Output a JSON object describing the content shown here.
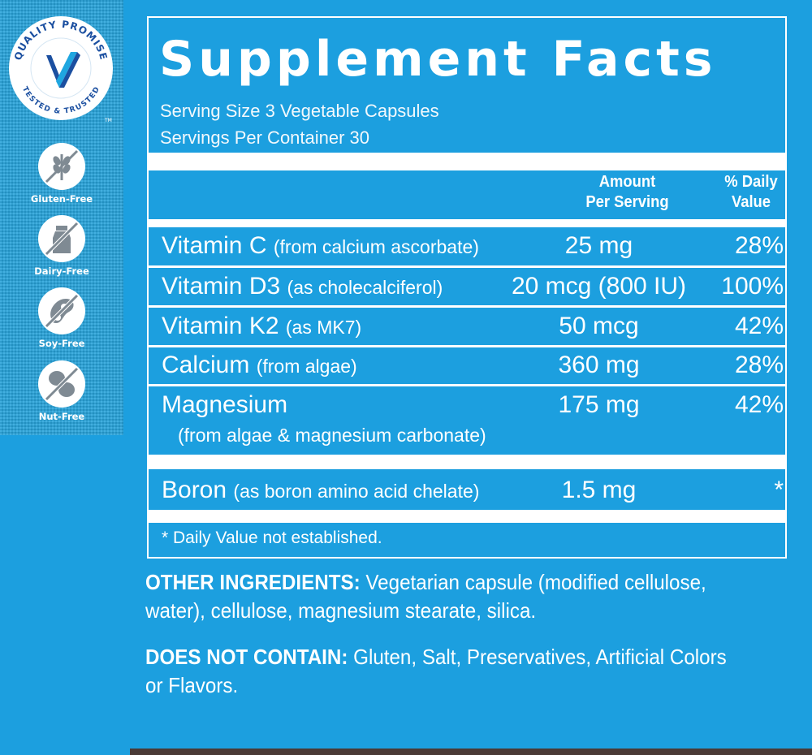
{
  "seal": {
    "top_text": "QUALITY PROMISE",
    "bottom_text": "TESTED & TRUSTED",
    "tm": "TM"
  },
  "badges": [
    {
      "label": "Gluten-Free",
      "icon": "wheat-crossed-icon"
    },
    {
      "label": "Dairy-Free",
      "icon": "milk-bottle-crossed-icon"
    },
    {
      "label": "Soy-Free",
      "icon": "soybean-crossed-icon"
    },
    {
      "label": "Nut-Free",
      "icon": "peanut-crossed-icon"
    }
  ],
  "facts": {
    "title": "Supplement Facts",
    "serving_size": "Serving Size 3 Vegetable Capsules",
    "servings_per_container": "Servings Per Container 30",
    "header_amount": [
      "Amount",
      "Per Serving"
    ],
    "header_dv": [
      "% Daily",
      "Value"
    ],
    "rows": [
      {
        "name": "Vitamin C",
        "source": "(from calcium ascorbate)",
        "amount": "25 mg",
        "dv": "28%"
      },
      {
        "name": "Vitamin D3",
        "source": "(as cholecalciferol)",
        "amount": "20 mcg (800 IU)",
        "dv": "100%"
      },
      {
        "name": "Vitamin K2",
        "source": "(as MK7)",
        "amount": "50 mcg",
        "dv": "42%"
      },
      {
        "name": "Calcium",
        "source": "(from algae)",
        "amount": "360 mg",
        "dv": "28%"
      },
      {
        "name": "Magnesium",
        "source": "(from algae & magnesium carbonate)",
        "amount": "175 mg",
        "dv": "42%"
      },
      {
        "name": "Boron",
        "source": "(as boron amino acid chelate)",
        "amount": "1.5 mg",
        "dv": "*"
      }
    ],
    "footnote": "* Daily Value not established."
  },
  "other_ingredients": {
    "label": "OTHER INGREDIENTS:",
    "text": "Vegetarian capsule (modified cellulose, water), cellulose, magnesium stearate, silica."
  },
  "does_not_contain": {
    "label": "DOES NOT CONTAIN:",
    "text": "Gluten, Salt, Preservatives, Artificial Colors or Flavors."
  },
  "colors": {
    "background": "#1c9fdf",
    "text": "#ffffff",
    "seal_blue": "#1b4fa0",
    "seal_accent": "#1fa6e0"
  }
}
